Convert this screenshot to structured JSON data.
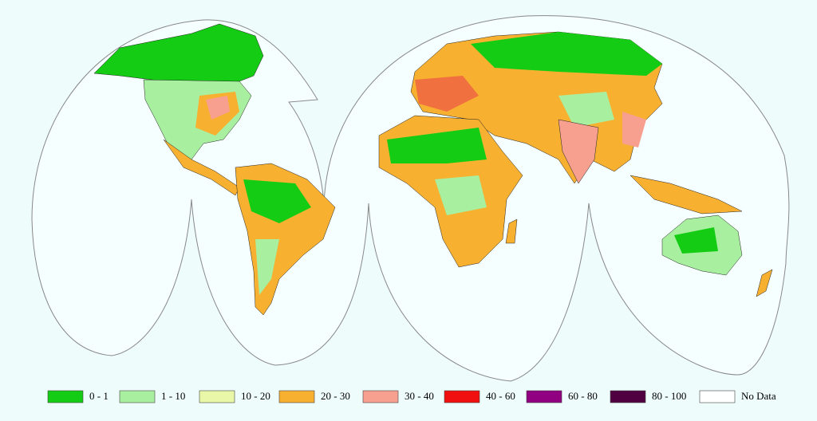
{
  "legend": {
    "items": [
      {
        "label": "0 - 1",
        "color": "#14cc14"
      },
      {
        "label": "1 - 10",
        "color": "#a8f0a0"
      },
      {
        "label": "10 - 20",
        "color": "#e8f8a8"
      },
      {
        "label": "20 - 30",
        "color": "#f8b030"
      },
      {
        "label": "30 - 40",
        "color": "#f8a090"
      },
      {
        "label": "40 - 60",
        "color": "#f01010"
      },
      {
        "label": "60 - 80",
        "color": "#900080"
      },
      {
        "label": "80 - 100",
        "color": "#500040"
      },
      {
        "label": "No Data",
        "color": "#ffffff"
      }
    ]
  }
}
